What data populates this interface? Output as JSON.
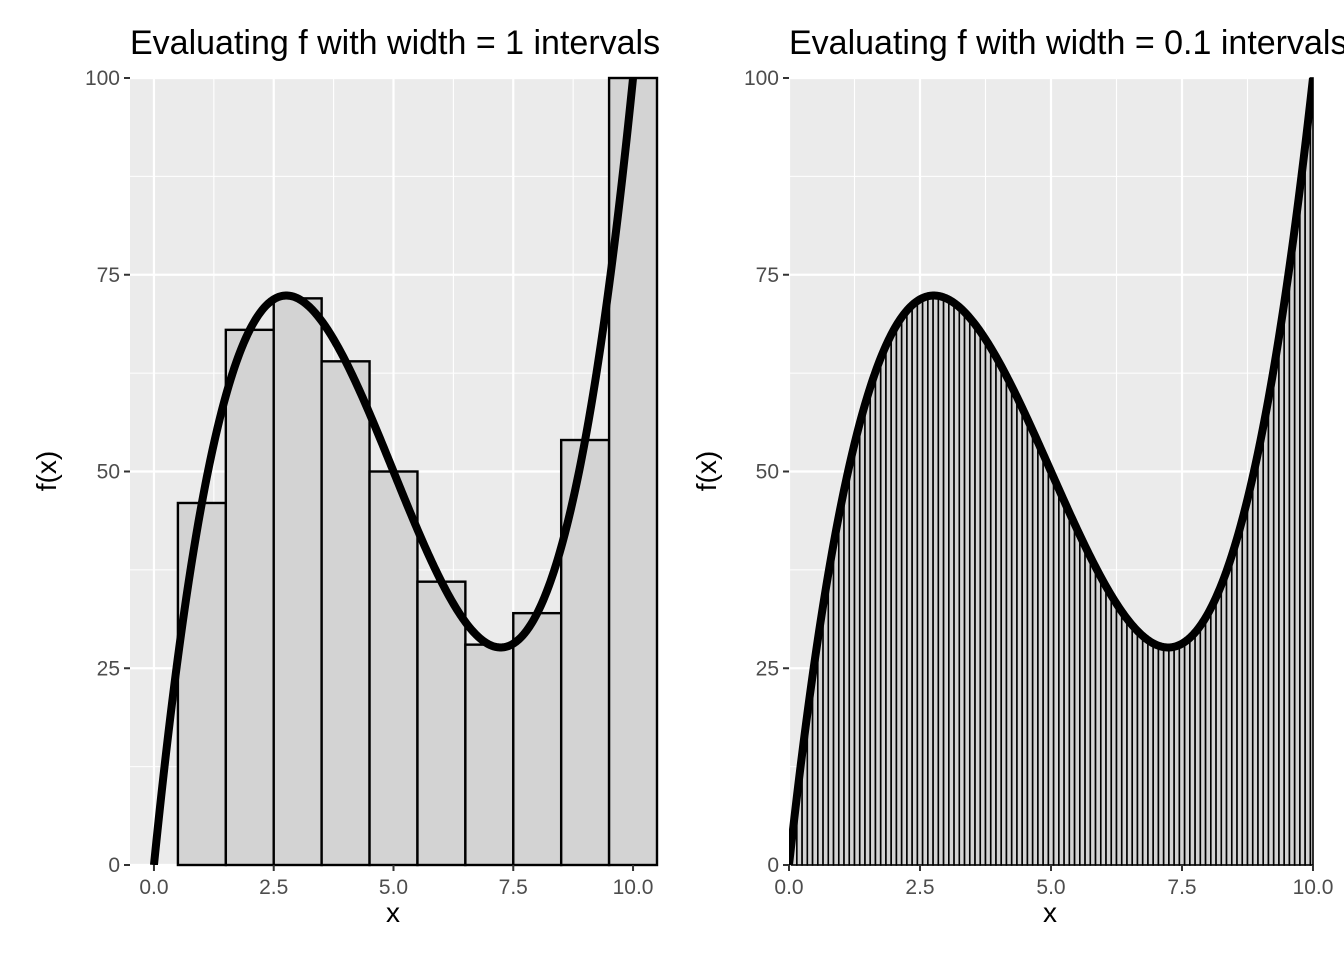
{
  "chart_data": [
    {
      "type": "bar",
      "title": "Evaluating f with width = 1 intervals",
      "xlabel": "x",
      "ylabel": "f(x)",
      "xlim": [
        -0.5,
        10.5
      ],
      "ylim": [
        0,
        100
      ],
      "x_ticks": [
        "0.0",
        "2.5",
        "5.0",
        "7.5",
        "10.0"
      ],
      "x_tick_values": [
        0,
        2.5,
        5,
        7.5,
        10
      ],
      "y_ticks": [
        "0",
        "25",
        "50",
        "75",
        "100"
      ],
      "y_tick_values": [
        0,
        25,
        50,
        75,
        100
      ],
      "grid": true,
      "bar_width": 1,
      "bars": {
        "x": [
          1,
          2,
          3,
          4,
          5,
          6,
          7,
          8,
          9,
          10
        ],
        "values": [
          46,
          68,
          72,
          64,
          50,
          36,
          28,
          32,
          54,
          100
        ],
        "fill": "#d3d3d3",
        "stroke": "#000000"
      },
      "curve": {
        "function": "x^3 - 15x^2 + 60x",
        "x_range": [
          0,
          10
        ],
        "color": "#000000"
      }
    },
    {
      "type": "bar",
      "title": "Evaluating f with width = 0.1 intervals",
      "xlabel": "x",
      "ylabel": "f(x)",
      "xlim": [
        0,
        10
      ],
      "ylim": [
        0,
        100
      ],
      "x_ticks": [
        "0.0",
        "2.5",
        "5.0",
        "7.5",
        "10.0"
      ],
      "x_tick_values": [
        0,
        2.5,
        5,
        7.5,
        10
      ],
      "y_ticks": [
        "0",
        "25",
        "50",
        "75",
        "100"
      ],
      "y_tick_values": [
        0,
        25,
        50,
        75,
        100
      ],
      "grid": true,
      "bar_width": 0.1,
      "bars": {
        "x_start": 0.1,
        "x_step": 0.1,
        "count": 100,
        "rule": "f(x) = x^3 - 15x^2 + 60x evaluated at each bar center",
        "fill": "#d3d3d3",
        "stroke": "#000000"
      },
      "curve": {
        "function": "x^3 - 15x^2 + 60x",
        "x_range": [
          0,
          10
        ],
        "color": "#000000"
      }
    }
  ]
}
